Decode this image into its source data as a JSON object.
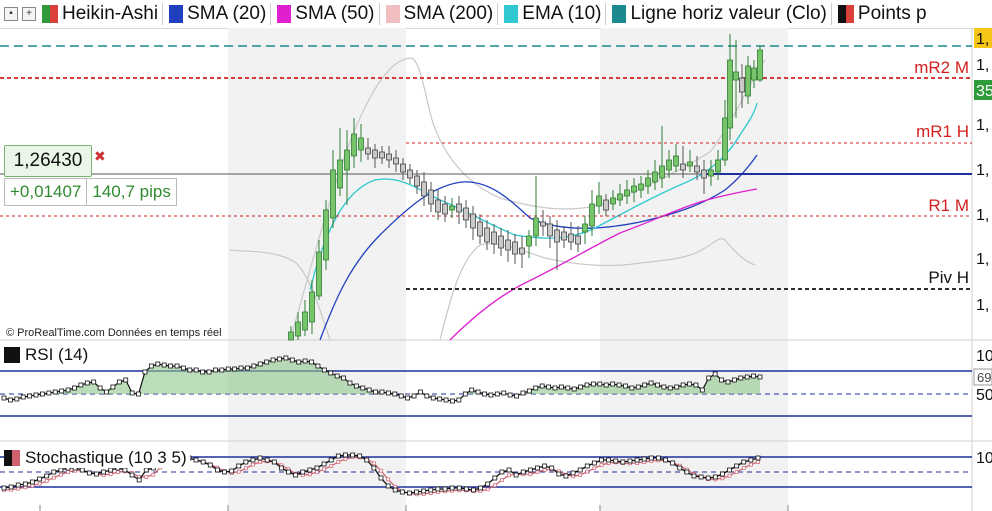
{
  "legend": {
    "items": [
      {
        "label": "Heikin-Ashi",
        "color": "#2e9a3a",
        "color2": "#d9403a"
      },
      {
        "label": "SMA (20)",
        "color": "#1f3fbf"
      },
      {
        "label": "SMA (50)",
        "color": "#e020d0"
      },
      {
        "label": "SMA (200)",
        "color": "#f2bfc0"
      },
      {
        "label": "EMA (10)",
        "color": "#2fc8d0"
      },
      {
        "label": "Ligne horiz valeur (Clo)",
        "color": "#1a8a8f"
      },
      {
        "label": "Points p",
        "color": "#111111",
        "color2": "#d9403a"
      }
    ]
  },
  "price_box": {
    "value": "1,26430",
    "change": "+0,01407",
    "pips": "140,7 pips"
  },
  "levels": {
    "mr2": "mR2 M",
    "mr1": "mR1 H",
    "r1": "R1 M",
    "piv": "Piv H"
  },
  "axis": {
    "price_ticks": [
      "1,",
      "1,",
      "1,",
      "1,",
      "1,",
      "1,",
      "1,"
    ],
    "current_tag": "1,",
    "green_tag": "35",
    "rsi_ticks": [
      "10",
      "50"
    ],
    "rsi_tag": "69",
    "stoch_ticks": [
      "10"
    ]
  },
  "copyright": "© ProRealTime.com  Données en temps réel",
  "rsi_panel": {
    "title": "RSI (14)"
  },
  "stoch_panel": {
    "title": "Stochastique (10 3 5)"
  }
}
